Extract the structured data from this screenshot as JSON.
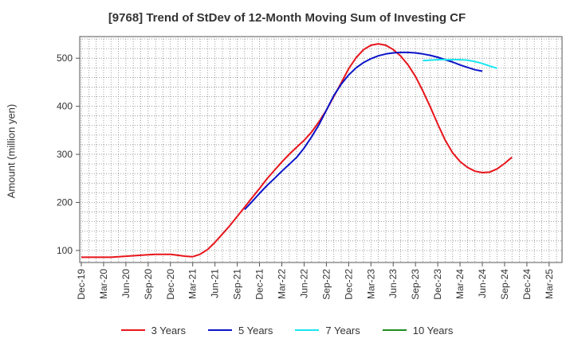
{
  "chart_data": {
    "type": "line",
    "title": "[9768]  Trend of StDev of 12-Month Moving Sum of Investing CF",
    "ylabel": "Amount (million yen)",
    "xlabel": "",
    "ylim": [
      75,
      545
    ],
    "yticks": [
      100,
      200,
      300,
      400,
      500
    ],
    "x_tick_labels": [
      "Dec-19",
      "Mar-20",
      "Jun-20",
      "Sep-20",
      "Dec-20",
      "Mar-21",
      "Jun-21",
      "Sep-21",
      "Dec-21",
      "Mar-22",
      "Jun-22",
      "Sep-22",
      "Dec-22",
      "Mar-23",
      "Jun-23",
      "Sep-23",
      "Dec-23",
      "Mar-24",
      "Jun-24",
      "Sep-24",
      "Dec-24",
      "Mar-25"
    ],
    "grid": true,
    "legend_position": "bottom",
    "series": [
      {
        "name": "3 Years",
        "color": "#e8141b",
        "points": [
          [
            0,
            86
          ],
          [
            0.33,
            86
          ],
          [
            0.67,
            86
          ],
          [
            1,
            86
          ],
          [
            1.33,
            86
          ],
          [
            1.67,
            87
          ],
          [
            2,
            88
          ],
          [
            2.33,
            89
          ],
          [
            2.67,
            90
          ],
          [
            3,
            91
          ],
          [
            3.33,
            92
          ],
          [
            3.67,
            92
          ],
          [
            4,
            92
          ],
          [
            4.33,
            90
          ],
          [
            4.67,
            88
          ],
          [
            5,
            87
          ],
          [
            5.33,
            92
          ],
          [
            5.67,
            102
          ],
          [
            6,
            117
          ],
          [
            6.33,
            134
          ],
          [
            6.67,
            152
          ],
          [
            7,
            171
          ],
          [
            7.33,
            190
          ],
          [
            7.67,
            210
          ],
          [
            8,
            229
          ],
          [
            8.33,
            249
          ],
          [
            8.67,
            267
          ],
          [
            9,
            284
          ],
          [
            9.33,
            300
          ],
          [
            9.67,
            315
          ],
          [
            10,
            329
          ],
          [
            10.33,
            346
          ],
          [
            10.67,
            368
          ],
          [
            11,
            392
          ],
          [
            11.33,
            420
          ],
          [
            11.67,
            449
          ],
          [
            12,
            478
          ],
          [
            12.33,
            501
          ],
          [
            12.67,
            518
          ],
          [
            13,
            527
          ],
          [
            13.33,
            530
          ],
          [
            13.67,
            527
          ],
          [
            14,
            518
          ],
          [
            14.33,
            505
          ],
          [
            14.67,
            486
          ],
          [
            15,
            462
          ],
          [
            15.33,
            432
          ],
          [
            15.67,
            398
          ],
          [
            16,
            363
          ],
          [
            16.33,
            330
          ],
          [
            16.67,
            303
          ],
          [
            17,
            285
          ],
          [
            17.33,
            273
          ],
          [
            17.67,
            265
          ],
          [
            18,
            262
          ],
          [
            18.33,
            263
          ],
          [
            18.67,
            270
          ],
          [
            19,
            281
          ],
          [
            19.33,
            294
          ]
        ]
      },
      {
        "name": "5 Years",
        "color": "#0a14c8",
        "points": [
          [
            7.33,
            185
          ],
          [
            7.67,
            202
          ],
          [
            8,
            219
          ],
          [
            8.33,
            235
          ],
          [
            8.67,
            250
          ],
          [
            9,
            265
          ],
          [
            9.33,
            279
          ],
          [
            9.67,
            294
          ],
          [
            10,
            313
          ],
          [
            10.33,
            336
          ],
          [
            10.67,
            362
          ],
          [
            11,
            392
          ],
          [
            11.33,
            422
          ],
          [
            11.67,
            446
          ],
          [
            12,
            465
          ],
          [
            12.33,
            480
          ],
          [
            12.67,
            491
          ],
          [
            13,
            499
          ],
          [
            13.33,
            505
          ],
          [
            13.67,
            509
          ],
          [
            14,
            511
          ],
          [
            14.33,
            512
          ],
          [
            14.67,
            512
          ],
          [
            15,
            511
          ],
          [
            15.33,
            509
          ],
          [
            15.67,
            506
          ],
          [
            16,
            502
          ],
          [
            16.33,
            497
          ],
          [
            16.67,
            492
          ],
          [
            17,
            486
          ],
          [
            17.33,
            481
          ],
          [
            17.67,
            476
          ],
          [
            18,
            473
          ]
        ]
      },
      {
        "name": "7 Years",
        "color": "#19e6f0",
        "points": [
          [
            15.33,
            495
          ],
          [
            15.67,
            496
          ],
          [
            16,
            497
          ],
          [
            16.33,
            497
          ],
          [
            16.67,
            497
          ],
          [
            17,
            497
          ],
          [
            17.33,
            496
          ],
          [
            17.67,
            493
          ],
          [
            18,
            489
          ],
          [
            18.33,
            484
          ],
          [
            18.67,
            479
          ]
        ]
      },
      {
        "name": "10 Years",
        "color": "#1e8c1e",
        "points": []
      }
    ]
  }
}
